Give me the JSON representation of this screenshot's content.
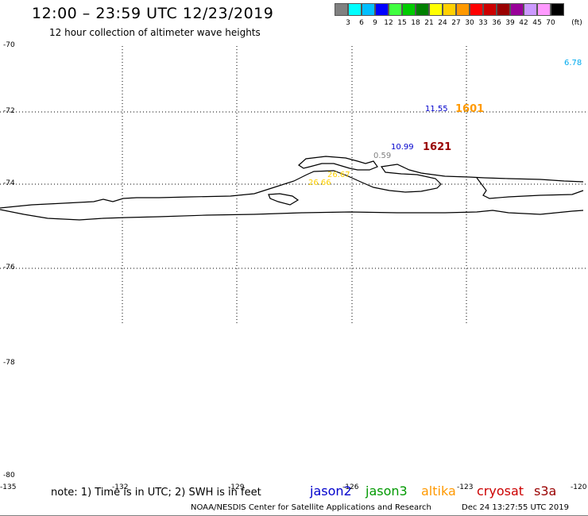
{
  "header": {
    "title": "12:00 – 23:59 UTC 12/23/2019",
    "subtitle": "12 hour collection of altimeter wave heights"
  },
  "color_scale": {
    "colors": [
      "#808080",
      "#00ffff",
      "#00bfff",
      "#0000ff",
      "#40ff40",
      "#00cc00",
      "#008000",
      "#ffff00",
      "#ffd000",
      "#ff9900",
      "#ff0000",
      "#cc0000",
      "#990000",
      "#990099",
      "#cc99ff",
      "#ff99ff",
      "#000000"
    ],
    "ticks": [
      "3",
      "6",
      "9",
      "12",
      "15",
      "18",
      "21",
      "24",
      "27",
      "30",
      "33",
      "36",
      "39",
      "42",
      "45",
      "70"
    ],
    "unit": "(ft)"
  },
  "axes": {
    "lat_labels": [
      "-70",
      "-72",
      "-74",
      "-76",
      "-78",
      "-80"
    ],
    "lon_labels": [
      "-135",
      "-132",
      "-129",
      "-126",
      "-123",
      "-120"
    ]
  },
  "observations": [
    {
      "text": "6.78",
      "color": "#00aaee"
    },
    {
      "text": "11.55",
      "color": "#0000cc"
    },
    {
      "text": "1601",
      "color": "#ff9900"
    },
    {
      "text": "10.99",
      "color": "#0000cc"
    },
    {
      "text": "1621",
      "color": "#990000"
    },
    {
      "text": "0.59",
      "color": "#808080"
    },
    {
      "text": "26.67",
      "color": "#ffd000"
    },
    {
      "text": "26.66",
      "color": "#ffd000"
    }
  ],
  "footer": {
    "note": "note: 1) Time is in UTC; 2) SWH is in feet",
    "legend": [
      {
        "label": "jason2",
        "color": "#0000cc"
      },
      {
        "label": "jason3",
        "color": "#009900"
      },
      {
        "label": "altika",
        "color": "#ff9900"
      },
      {
        "label": "cryosat",
        "color": "#cc0000"
      },
      {
        "label": "s3a",
        "color": "#990000"
      }
    ],
    "credit": "NOAA/NESDIS Center for Satellite Applications and Research",
    "timestamp": "Dec 24 13:27:55 UTC 2019"
  }
}
